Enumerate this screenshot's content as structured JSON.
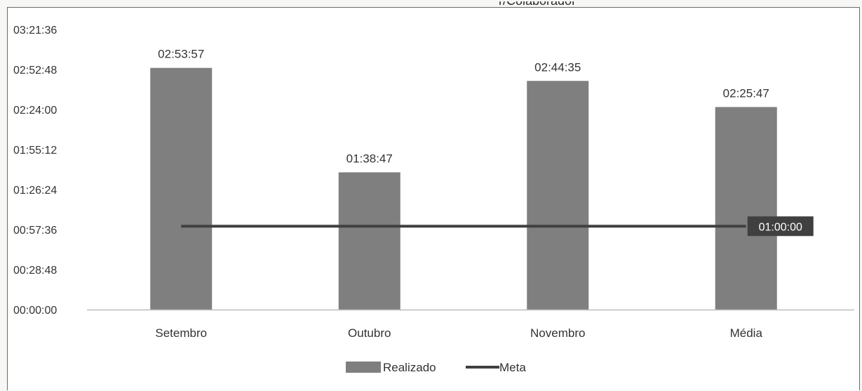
{
  "chart_data": {
    "type": "bar",
    "title": "",
    "categories": [
      "Setembro",
      "Outubro",
      "Novembro",
      "Média"
    ],
    "series": [
      {
        "name": "Realizado",
        "kind": "bar",
        "values": [
          "02:53:57",
          "01:38:47",
          "02:44:35",
          "02:25:47"
        ],
        "labels": [
          "02:53:57",
          "01:38:47",
          "02:44:35",
          "02:25:47"
        ],
        "color": "#7f7f7f"
      },
      {
        "name": "Meta",
        "kind": "line",
        "values": [
          "01:00:00",
          "01:00:00",
          "01:00:00",
          "01:00:00"
        ],
        "end_label": "01:00:00",
        "color": "#404040"
      }
    ],
    "yticks": [
      "00:00:00",
      "00:28:48",
      "00:57:36",
      "01:26:24",
      "01:55:12",
      "02:24:00",
      "02:52:48",
      "03:21:36"
    ],
    "ylim": [
      "00:00:00",
      "03:21:36"
    ],
    "legend_position": "bottom",
    "grid": false,
    "xlabel": "",
    "ylabel": ""
  }
}
